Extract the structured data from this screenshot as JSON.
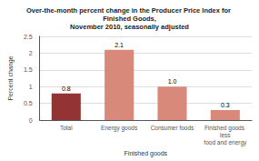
{
  "chart_data": {
    "type": "bar",
    "title": "Over-the-month percent change in the Producer Price Index for Finished Goods,\nNovember 2010, seasonally adjusted",
    "categories": [
      "Total",
      "Energy goods",
      "Consumer foods",
      "Finished goods less\nfood and energy"
    ],
    "values": [
      0.8,
      2.1,
      1.0,
      0.3
    ],
    "value_labels": [
      "0.8",
      "2.1",
      "1.0",
      "0.3"
    ],
    "data_labels": true,
    "colors": [
      "#943333",
      "#d9897a",
      "#d9897a",
      "#d9897a"
    ],
    "xlabel": "Finished goods",
    "ylabel": "Percent change",
    "ylim": [
      0,
      2.5
    ],
    "yticks": [
      0,
      0.5,
      1,
      1.5,
      2,
      2.5
    ],
    "grid": true
  }
}
